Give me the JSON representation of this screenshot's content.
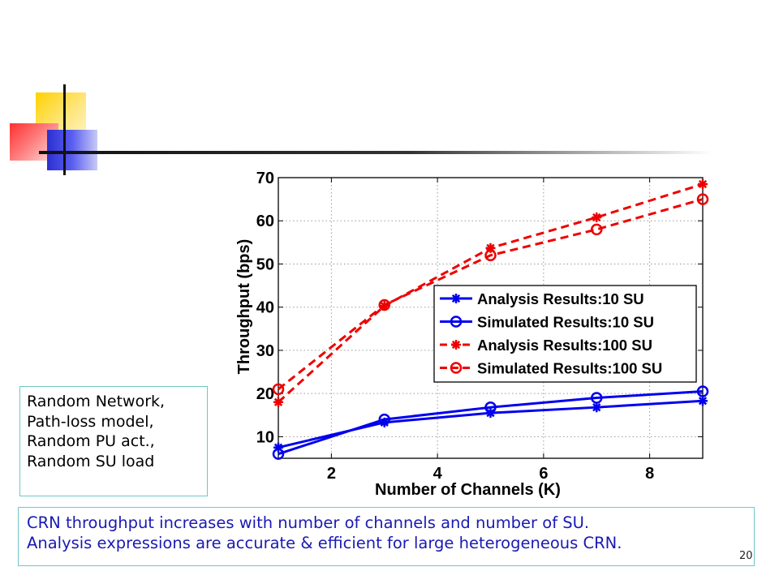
{
  "slide": {
    "info_lines": [
      "Random Network,",
      "Path-loss model,",
      "Random PU act.,",
      "Random SU load"
    ],
    "note_lines": [
      "CRN throughput increases with number of channels and number of SU.",
      "Analysis expressions are accurate & efficient for large heterogeneous CRN."
    ],
    "slide_number": "20"
  },
  "chart_data": {
    "type": "line",
    "title": "",
    "xlabel": "Number of Channels (K)",
    "ylabel": "Throughput (bps)",
    "xlim": [
      1,
      9
    ],
    "ylim": [
      5,
      70
    ],
    "xticks": [
      2,
      4,
      6,
      8
    ],
    "yticks": [
      10,
      20,
      30,
      40,
      50,
      60,
      70
    ],
    "grid": true,
    "legend_position": "right",
    "x": [
      1,
      3,
      5,
      7,
      9
    ],
    "series": [
      {
        "name": "Analysis Results:10 SU",
        "values": [
          7.5,
          13.3,
          15.5,
          16.8,
          18.3
        ],
        "color": "#0000ee",
        "dash": "solid",
        "marker": "star"
      },
      {
        "name": "Simulated Results:10 SU",
        "values": [
          6.0,
          14.0,
          16.8,
          19.0,
          20.5
        ],
        "color": "#0000ee",
        "dash": "solid",
        "marker": "circle"
      },
      {
        "name": "Analysis Results:100 SU",
        "values": [
          18.0,
          40.3,
          53.7,
          60.8,
          68.5
        ],
        "color": "#ee0000",
        "dash": "dashed",
        "marker": "star"
      },
      {
        "name": "Simulated Results:100 SU",
        "values": [
          21.0,
          40.5,
          52.0,
          58.0,
          65.0
        ],
        "color": "#ee0000",
        "dash": "dashed",
        "marker": "circle"
      }
    ]
  }
}
